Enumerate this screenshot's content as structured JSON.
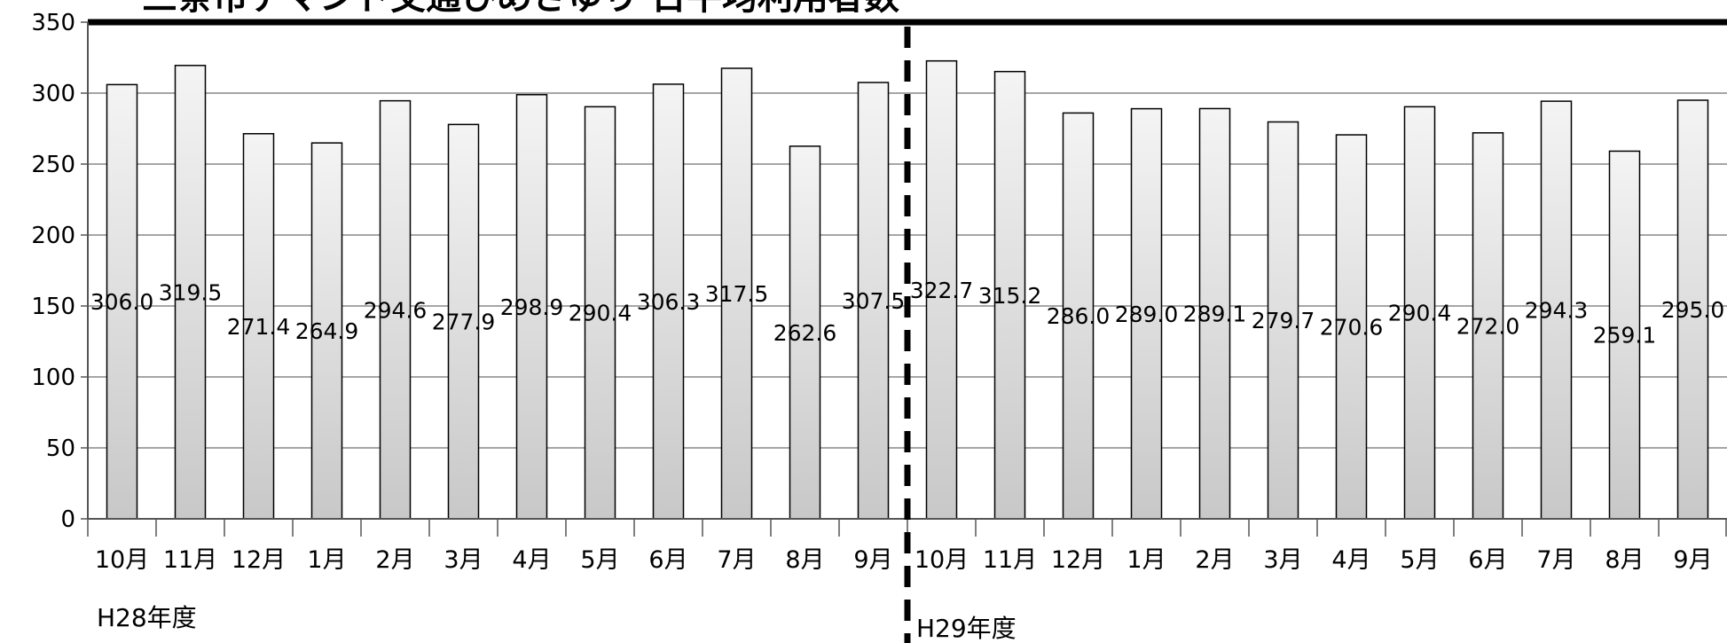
{
  "chart_data": {
    "type": "bar",
    "title": "三条市デマンド交通ひめさゆり 日平均利用者数",
    "xlabel": "",
    "ylabel": "",
    "ylim": [
      0,
      350
    ],
    "yticks": [
      0,
      50,
      100,
      150,
      200,
      250,
      300,
      350
    ],
    "grid": true,
    "legend": "none",
    "categories": [
      "10月",
      "11月",
      "12月",
      "1月",
      "2月",
      "3月",
      "4月",
      "5月",
      "6月",
      "7月",
      "8月",
      "9月",
      "10月",
      "11月",
      "12月",
      "1月",
      "2月",
      "3月",
      "4月",
      "5月",
      "6月",
      "7月",
      "8月",
      "9月"
    ],
    "values": [
      306.0,
      319.5,
      271.4,
      264.9,
      294.6,
      277.9,
      298.9,
      290.4,
      306.3,
      317.5,
      262.6,
      307.5,
      322.7,
      315.2,
      286.0,
      289.0,
      289.1,
      279.7,
      270.6,
      290.4,
      272.0,
      294.3,
      259.1,
      295.0
    ],
    "value_labels": [
      "306.0",
      "319.5",
      "271.4",
      "264.9",
      "294.6",
      "277.9",
      "298.9",
      "290.4",
      "306.3",
      "317.5",
      "262.6",
      "307.5",
      "322.7",
      "315.2",
      "286.0",
      "289.0",
      "289.1",
      "279.7",
      "270.6",
      "290.4",
      "272.0",
      "294.3",
      "259.1",
      "295.0"
    ],
    "periods": [
      {
        "label": "H28年度",
        "start_index": 0,
        "end_index": 11
      },
      {
        "label": "H29年度",
        "start_index": 12,
        "end_index": 23
      }
    ]
  },
  "colors": {
    "bar_top": "#f4f4f4",
    "bar_bottom": "#c8c8c8",
    "bar_stroke": "#000000",
    "grid": "#888888",
    "axis": "#555555",
    "divider": "#000000"
  }
}
